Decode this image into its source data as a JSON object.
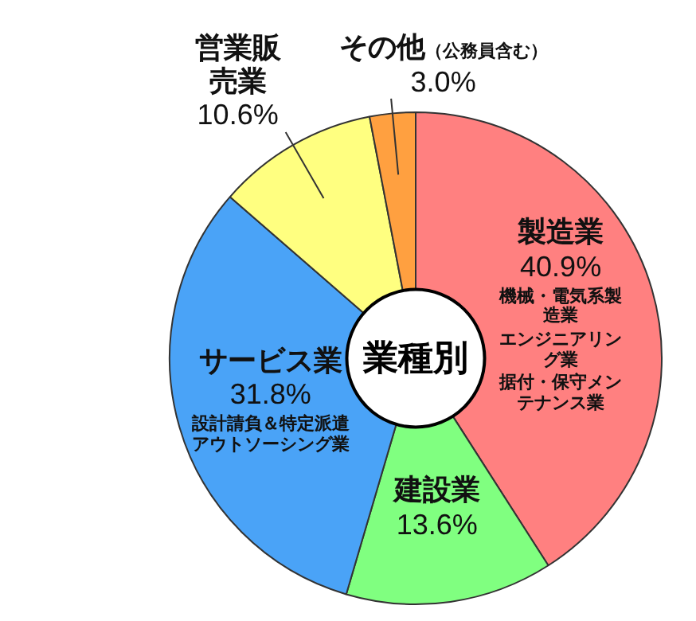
{
  "chart_data": {
    "type": "donut",
    "title": "業種別",
    "categories": [
      "製造業",
      "建設業",
      "サービス業",
      "営業販売業",
      "その他"
    ],
    "values": [
      40.9,
      13.6,
      31.8,
      10.6,
      3.0
    ],
    "value_labels": [
      "40.9%",
      "13.6%",
      "31.8%",
      "10.6%",
      "3.0%"
    ],
    "colors": [
      "#ff8080",
      "#80ff80",
      "#4aa3f7",
      "#ffff80",
      "#ffa040"
    ],
    "annotations": [
      {
        "text": "機械・電気系製造業",
        "x": "製造業"
      },
      {
        "text": "エンジニアリング業",
        "x": "製造業"
      },
      {
        "text": "据付・保守メンテナンス業",
        "x": "製造業"
      },
      {
        "text": "設計請負＆特定派遣アウトソーシング業",
        "x": "サービス業"
      },
      {
        "text": "（公務員含む）",
        "x": "その他"
      }
    ],
    "legend": false
  }
}
